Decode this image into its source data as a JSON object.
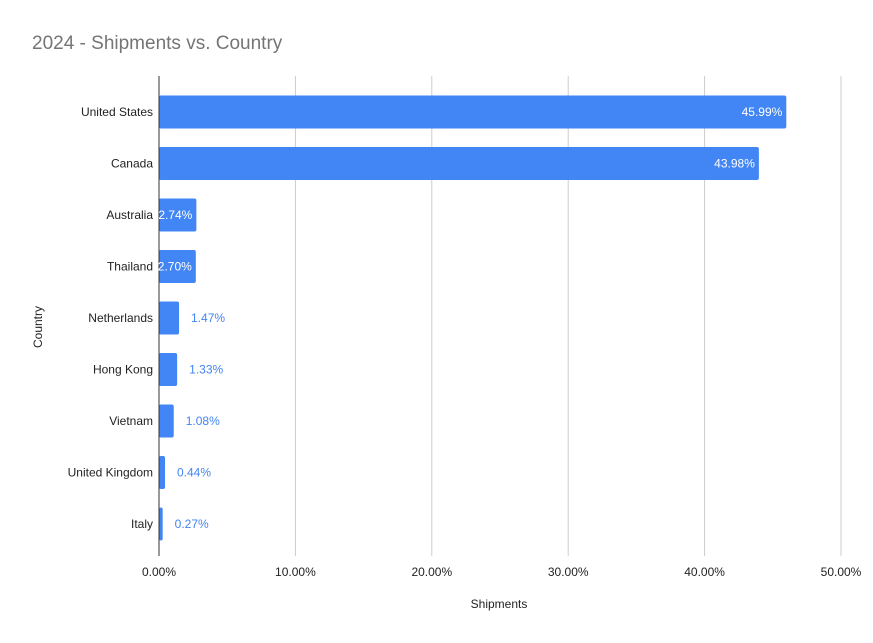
{
  "chart_data": {
    "type": "bar",
    "orientation": "horizontal",
    "title": "2024 - Shipments vs. Country",
    "xlabel": "Shipments",
    "ylabel": "Country",
    "categories": [
      "United States",
      "Canada",
      "Australia",
      "Thailand",
      "Netherlands",
      "Hong Kong",
      "Vietnam",
      "United Kingdom",
      "Italy"
    ],
    "values": [
      45.99,
      43.98,
      2.74,
      2.7,
      1.47,
      1.33,
      1.08,
      0.44,
      0.27
    ],
    "data_labels": [
      "45.99%",
      "43.98%",
      "2.74%",
      "2.70%",
      "1.47%",
      "1.33%",
      "1.08%",
      "0.44%",
      "0.27%"
    ],
    "xlim": [
      0,
      50
    ],
    "x_ticks": [
      0,
      10,
      20,
      30,
      40,
      50
    ],
    "x_tick_labels": [
      "0.00%",
      "10.00%",
      "20.00%",
      "30.00%",
      "40.00%",
      "50.00%"
    ],
    "grid": true,
    "legend": "none",
    "bar_color": "#4285f4",
    "grid_color": "#cccccc",
    "axis_color": "#333333"
  }
}
